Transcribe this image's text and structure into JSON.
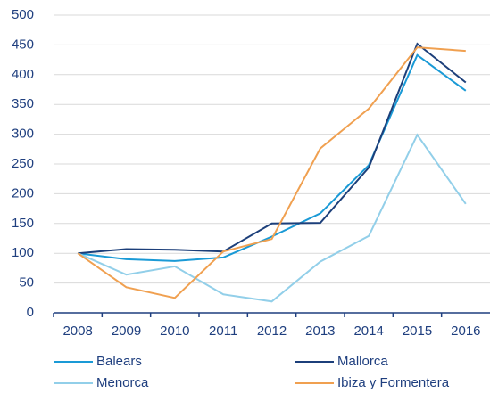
{
  "chart_data": {
    "type": "line",
    "categories": [
      "2008",
      "2009",
      "2010",
      "2011",
      "2012",
      "2013",
      "2014",
      "2015",
      "2016"
    ],
    "series": [
      {
        "name": "Balears",
        "color": "#1a9ad6",
        "values": [
          100,
          90,
          87,
          93,
          128,
          167,
          248,
          433,
          373
        ]
      },
      {
        "name": "Mallorca",
        "color": "#1c3f7a",
        "values": [
          100,
          107,
          106,
          103,
          150,
          151,
          244,
          452,
          387
        ]
      },
      {
        "name": "Menorca",
        "color": "#92cfe9",
        "values": [
          100,
          64,
          78,
          31,
          19,
          86,
          129,
          299,
          183
        ]
      },
      {
        "name": "Ibiza y Formentera",
        "color": "#f0a050",
        "values": [
          100,
          43,
          25,
          103,
          124,
          276,
          343,
          446,
          440
        ]
      }
    ],
    "ylim": [
      0,
      500
    ],
    "yticks": [
      0,
      50,
      100,
      150,
      200,
      250,
      300,
      350,
      400,
      450,
      500
    ],
    "grid": true,
    "legend": "bottom"
  }
}
